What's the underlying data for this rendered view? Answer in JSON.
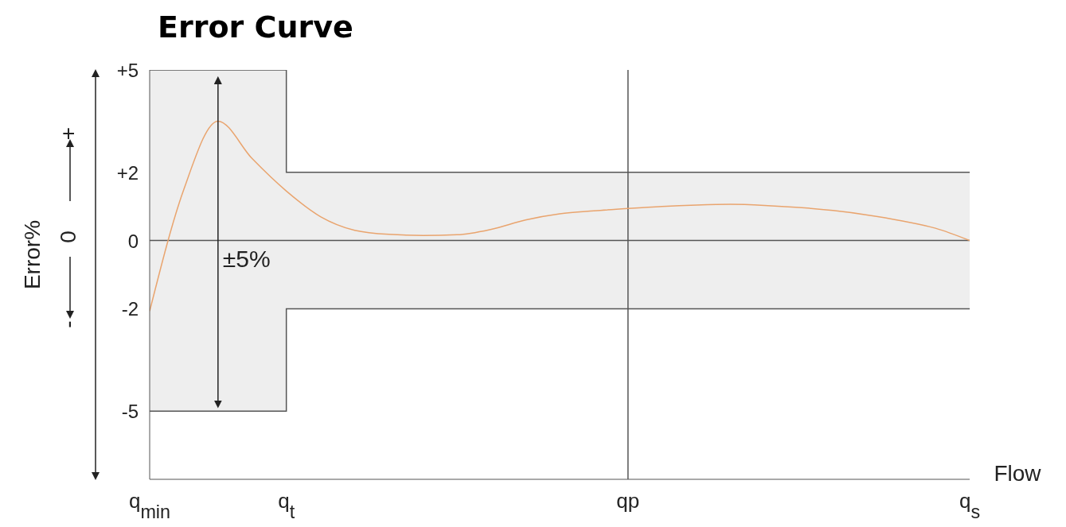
{
  "chart_data": {
    "type": "line",
    "title": "Error Curve",
    "xlabel": "Flow",
    "ylabel": "Error%",
    "annotations": [
      "±5%",
      "+",
      "0",
      "-"
    ],
    "categories": [
      "q$_{min}$",
      null,
      null,
      null,
      "q$_{t}$",
      null,
      null,
      null,
      null,
      null,
      null,
      null,
      null,
      null,
      "qp",
      null,
      null,
      null,
      null,
      null,
      null,
      null,
      null,
      null,
      "q$_{s}$"
    ],
    "ylim": [
      -7,
      5
    ],
    "yticks": [
      {
        "value": 5,
        "label": "+5"
      },
      {
        "value": 2,
        "label": "+2"
      },
      0,
      -2,
      -5
    ],
    "ref_lines": [
      {
        "axis": "x",
        "value": "qp",
        "color": "#555555"
      },
      {
        "axis": "y",
        "value": 0,
        "color": "#555555"
      }
    ],
    "series": [
      {
        "type": "area",
        "color": "#eeeeee",
        "values": [
          5,
          5,
          5,
          5,
          2,
          2,
          2,
          2,
          2,
          2,
          2,
          2,
          2,
          2,
          2,
          2,
          2,
          2,
          2,
          2,
          2,
          2,
          2,
          2,
          2
        ]
      },
      {
        "type": "area",
        "color": "#eeeeee",
        "values": [
          -5,
          -5,
          -5,
          -5,
          -2,
          -2,
          -2,
          -2,
          -2,
          -2,
          -2,
          -2,
          -2,
          -2,
          -2,
          -2,
          -2,
          -2,
          -2,
          -2,
          -2,
          -2,
          -2,
          -2,
          -2
        ]
      },
      {
        "type": "step",
        "color": "#555555",
        "values": [
          5,
          5,
          5,
          5,
          2,
          2,
          2,
          2,
          2,
          2,
          2,
          2,
          2,
          2,
          2,
          2,
          2,
          2,
          2,
          2,
          2,
          2,
          2,
          2,
          2
        ]
      },
      {
        "type": "step",
        "color": "#555555",
        "values": [
          -5,
          -5,
          -5,
          -5,
          -2,
          -2,
          -2,
          -2,
          -2,
          -2,
          -2,
          -2,
          -2,
          -2,
          -2,
          -2,
          -2,
          -2,
          -2,
          -2,
          -2,
          -2,
          -2,
          -2,
          -2
        ]
      },
      {
        "color": "#e9a46e",
        "values": [
          -2.07,
          1.5,
          3.5,
          2.4,
          1.45,
          0.7,
          0.3,
          0.18,
          0.15,
          0.17,
          0.33,
          0.6,
          0.78,
          0.87,
          0.94,
          1.0,
          1.04,
          1.06,
          1.03,
          0.97,
          0.88,
          0.75,
          0.58,
          0.36,
          0
        ]
      }
    ]
  }
}
